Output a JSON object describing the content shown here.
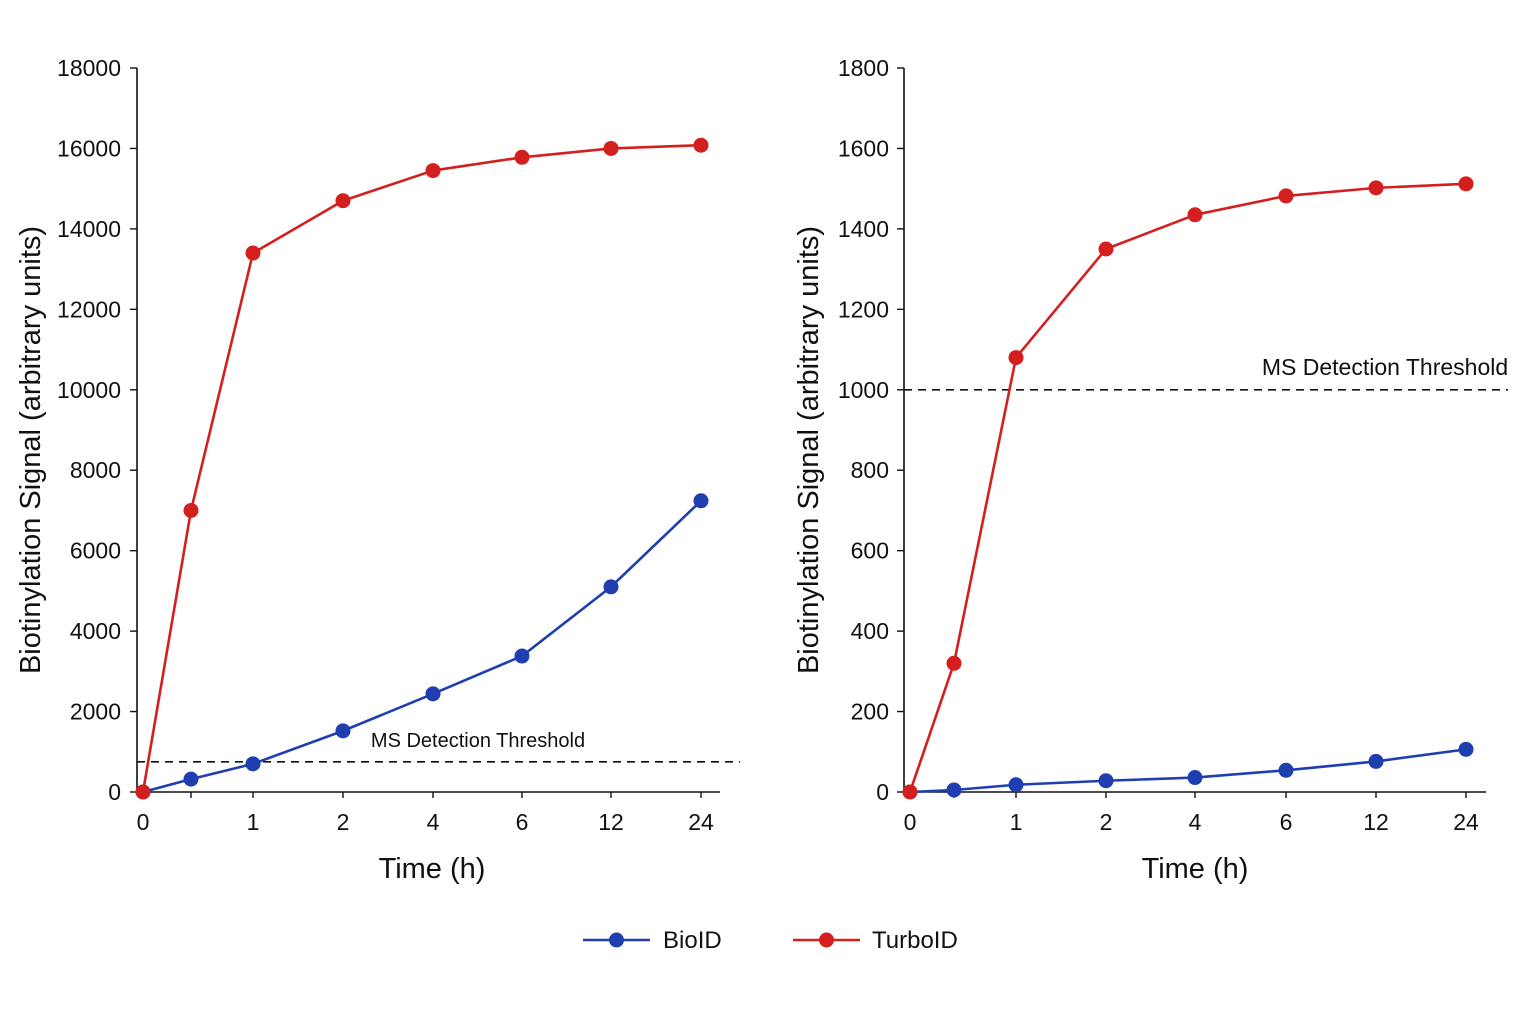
{
  "chart_data": [
    {
      "type": "line",
      "x_categories": [
        "0",
        "",
        "1",
        "2",
        "4",
        "6",
        "12",
        "24"
      ],
      "xlabel": "Time (h)",
      "ylabel": "Biotinylation Signal (arbitrary units)",
      "ylim": [
        0,
        18000
      ],
      "yticks": [
        0,
        2000,
        4000,
        6000,
        8000,
        10000,
        12000,
        14000,
        16000,
        18000
      ],
      "series": [
        {
          "name": "BioID",
          "color": "#1f3fb0",
          "values": [
            0,
            320,
            700,
            1520,
            2440,
            3380,
            5100,
            7240
          ]
        },
        {
          "name": "TurboID",
          "color": "#d41f1f",
          "values": [
            0,
            7000,
            13400,
            14700,
            15450,
            15780,
            16000,
            16080
          ]
        }
      ],
      "threshold": {
        "label": "MS Detection Threshold",
        "value": 750,
        "style": "dashed"
      },
      "grid": false
    },
    {
      "type": "line",
      "x_categories": [
        "0",
        "",
        "1",
        "2",
        "4",
        "6",
        "12",
        "24"
      ],
      "xlabel": "Time (h)",
      "ylabel": "Biotinylation Signal (arbitrary units)",
      "ylim": [
        0,
        1800
      ],
      "yticks": [
        0,
        200,
        400,
        600,
        800,
        1000,
        1200,
        1400,
        1600,
        1800
      ],
      "series": [
        {
          "name": "BioID",
          "color": "#1f3fb0",
          "values": [
            0,
            5,
            18,
            28,
            36,
            54,
            76,
            106
          ]
        },
        {
          "name": "TurboID",
          "color": "#d41f1f",
          "values": [
            0,
            320,
            1080,
            1350,
            1435,
            1482,
            1502,
            1512
          ]
        }
      ],
      "threshold": {
        "label": "MS Detection Threshold",
        "value": 1000,
        "style": "dashed"
      },
      "grid": false
    }
  ],
  "legend": {
    "placement": "bottom-center",
    "items": [
      {
        "name": "BioID",
        "color": "#1f3fb0"
      },
      {
        "name": "TurboID",
        "color": "#d41f1f"
      }
    ]
  }
}
